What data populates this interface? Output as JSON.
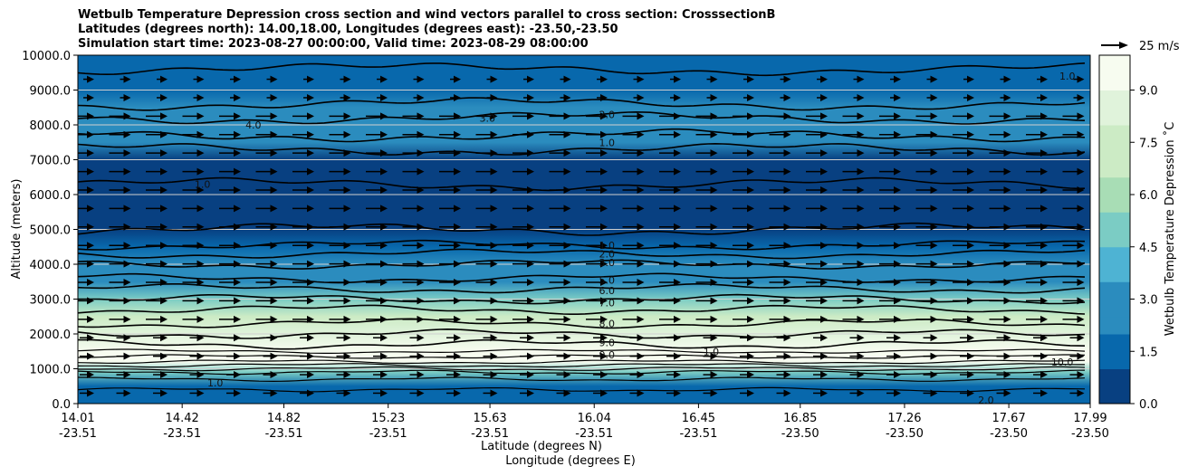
{
  "title_lines": [
    "Wetbulb Temperature Depression cross section and wind vectors parallel to cross section: CrosssectionB",
    "Latitudes (degrees north): 14.00,18.00, Longitudes (degrees east): -23.50,-23.50",
    "Simulation start time: 2023-08-27 00:00:00, Valid time: 2023-08-29 08:00:00"
  ],
  "chart_data": {
    "type": "heatmap",
    "ylabel": "Altitude (meters)",
    "xlabel_line1": "Latitude (degrees N)",
    "xlabel_line2": "Longitude (degrees E)",
    "ylim": [
      0,
      10000
    ],
    "y_ticks": [
      "0.0",
      "1000.0",
      "2000.0",
      "3000.0",
      "4000.0",
      "5000.0",
      "6000.0",
      "7000.0",
      "8000.0",
      "9000.0",
      "10000.0"
    ],
    "x_ticks": [
      {
        "lat": "14.01",
        "lon": "-23.51"
      },
      {
        "lat": "14.42",
        "lon": "-23.51"
      },
      {
        "lat": "14.82",
        "lon": "-23.51"
      },
      {
        "lat": "15.23",
        "lon": "-23.51"
      },
      {
        "lat": "15.63",
        "lon": "-23.51"
      },
      {
        "lat": "16.04",
        "lon": "-23.51"
      },
      {
        "lat": "16.45",
        "lon": "-23.51"
      },
      {
        "lat": "16.85",
        "lon": "-23.50"
      },
      {
        "lat": "17.26",
        "lon": "-23.50"
      },
      {
        "lat": "17.67",
        "lon": "-23.50"
      },
      {
        "lat": "17.99",
        "lon": "-23.50"
      }
    ],
    "colorbar": {
      "label": "Wetbulb Temperature Depression ˚C",
      "range": [
        0,
        10
      ],
      "ticks": [
        "0.0",
        "1.5",
        "3.0",
        "4.5",
        "6.0",
        "7.5",
        "9.0"
      ],
      "colors": [
        "#084081",
        "#0868ac",
        "#2b8cbe",
        "#4eb3d3",
        "#7bccc4",
        "#a8ddb5",
        "#ccebc5",
        "#e0f3db",
        "#f7fcf0"
      ]
    },
    "wind_key": "25 m/s",
    "profile_altitudes": [
      0,
      500,
      900,
      1200,
      1500,
      2000,
      2500,
      3000,
      3500,
      4000,
      4500,
      5000,
      5500,
      6000,
      6500,
      7000,
      7500,
      8000,
      8500,
      9000,
      9500,
      10000
    ],
    "profile_values": [
      1.5,
      2.0,
      4.5,
      9.5,
      9.8,
      8.5,
      7.0,
      5.5,
      3.0,
      2.5,
      1.5,
      0.8,
      0.6,
      0.6,
      0.7,
      1.0,
      2.5,
      3.2,
      3.0,
      2.2,
      1.8,
      1.4
    ],
    "contour_labels": [
      {
        "text": "1.0",
        "lat": 16.09,
        "alt": 4550
      },
      {
        "text": "2.0",
        "lat": 16.09,
        "alt": 4300
      },
      {
        "text": "3.0",
        "lat": 16.09,
        "alt": 4050
      },
      {
        "text": "5.0",
        "lat": 16.09,
        "alt": 3550
      },
      {
        "text": "6.0",
        "lat": 16.09,
        "alt": 3250
      },
      {
        "text": "7.0",
        "lat": 16.09,
        "alt": 2900
      },
      {
        "text": "8.0",
        "lat": 16.09,
        "alt": 2300
      },
      {
        "text": "9.0",
        "lat": 16.09,
        "alt": 1750
      },
      {
        "text": "9.0",
        "lat": 16.09,
        "alt": 1400
      },
      {
        "text": "1.0",
        "lat": 16.09,
        "alt": 7500
      },
      {
        "text": "2.0",
        "lat": 16.09,
        "alt": 8300
      },
      {
        "text": "3.0",
        "lat": 15.62,
        "alt": 8200
      },
      {
        "text": "4.0",
        "lat": 14.7,
        "alt": 8000
      },
      {
        "text": "1.0",
        "lat": 14.5,
        "alt": 6300
      },
      {
        "text": "1.0",
        "lat": 14.55,
        "alt": 600
      },
      {
        "text": "1.0",
        "lat": 16.5,
        "alt": 1500
      },
      {
        "text": "10.0",
        "lat": 17.88,
        "alt": 1200
      },
      {
        "text": "2.0",
        "lat": 17.58,
        "alt": 100
      },
      {
        "text": "1.0",
        "lat": 17.9,
        "alt": 9400
      }
    ]
  }
}
